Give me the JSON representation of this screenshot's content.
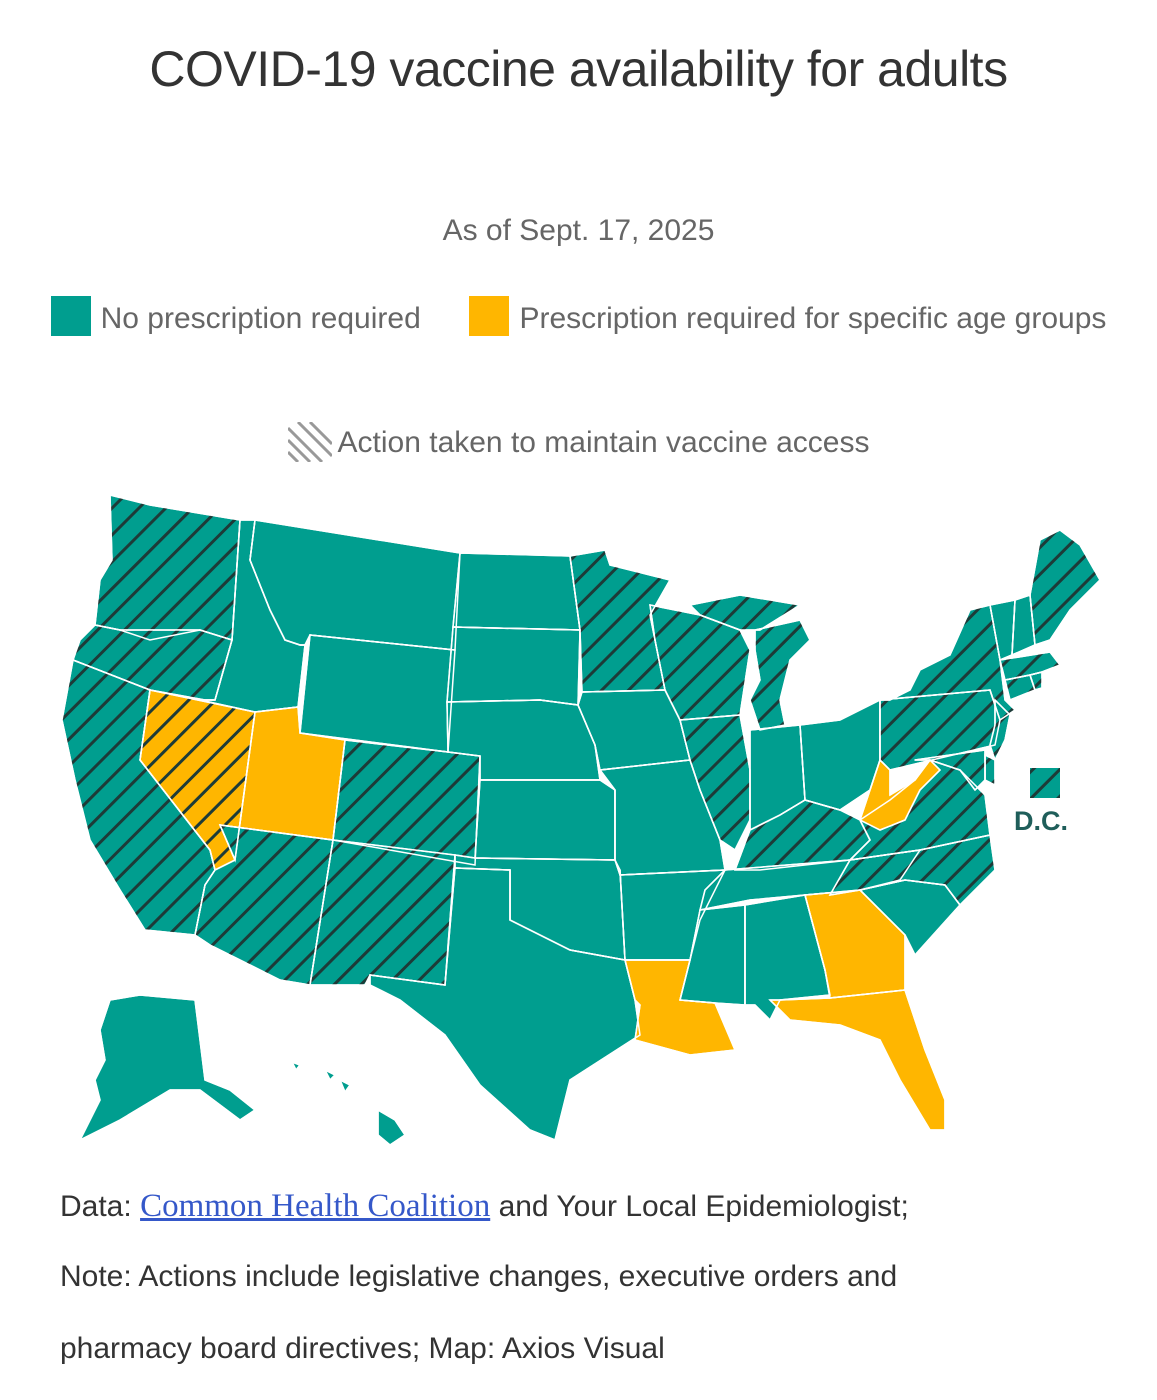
{
  "title": "COVID-19 vaccine availability for adults",
  "subtitle": "As of Sept. 17, 2025",
  "legend": {
    "no_rx": {
      "label": "No prescription required",
      "color": "#009e8f"
    },
    "rx": {
      "label": "Prescription required for specific age groups",
      "color": "#ffb600"
    },
    "action": {
      "label": "Action taken to maintain vaccine access",
      "icon": "hatch-pattern-icon"
    }
  },
  "dc_label": "D.C.",
  "footer": {
    "data_prefix": "Data:",
    "data_link": "Common Health Coalition",
    "data_suffix": "and Your Local Epidemiologist;",
    "note_line1": "Note: Actions include legislative changes, executive orders and",
    "note_line2": "pharmacy board directives; Map: Axios Visual"
  },
  "colors": {
    "teal": "#009e8f",
    "yellow": "#ffb600",
    "hatch": "#1d3b38"
  },
  "chart_data": {
    "type": "choropleth",
    "title": "COVID-19 vaccine availability for adults",
    "subtitle": "As of Sept. 17, 2025",
    "categories": [
      "No prescription required",
      "Prescription required for specific age groups"
    ],
    "overlay": "Action taken to maintain vaccine access",
    "states": [
      {
        "code": "WA",
        "status": "no_rx",
        "action": true
      },
      {
        "code": "OR",
        "status": "no_rx",
        "action": true
      },
      {
        "code": "CA",
        "status": "no_rx",
        "action": true
      },
      {
        "code": "NV",
        "status": "rx",
        "action": true
      },
      {
        "code": "ID",
        "status": "no_rx",
        "action": false
      },
      {
        "code": "MT",
        "status": "no_rx",
        "action": false
      },
      {
        "code": "WY",
        "status": "no_rx",
        "action": false
      },
      {
        "code": "UT",
        "status": "rx",
        "action": false
      },
      {
        "code": "CO",
        "status": "no_rx",
        "action": true
      },
      {
        "code": "AZ",
        "status": "no_rx",
        "action": true
      },
      {
        "code": "NM",
        "status": "no_rx",
        "action": true
      },
      {
        "code": "ND",
        "status": "no_rx",
        "action": false
      },
      {
        "code": "SD",
        "status": "no_rx",
        "action": false
      },
      {
        "code": "NE",
        "status": "no_rx",
        "action": false
      },
      {
        "code": "KS",
        "status": "no_rx",
        "action": false
      },
      {
        "code": "OK",
        "status": "no_rx",
        "action": false
      },
      {
        "code": "TX",
        "status": "no_rx",
        "action": false
      },
      {
        "code": "MN",
        "status": "no_rx",
        "action": true
      },
      {
        "code": "IA",
        "status": "no_rx",
        "action": false
      },
      {
        "code": "MO",
        "status": "no_rx",
        "action": false
      },
      {
        "code": "AR",
        "status": "no_rx",
        "action": false
      },
      {
        "code": "LA",
        "status": "rx",
        "action": false
      },
      {
        "code": "WI",
        "status": "no_rx",
        "action": true
      },
      {
        "code": "IL",
        "status": "no_rx",
        "action": true
      },
      {
        "code": "MI",
        "status": "no_rx",
        "action": true
      },
      {
        "code": "IN",
        "status": "no_rx",
        "action": false
      },
      {
        "code": "OH",
        "status": "no_rx",
        "action": false
      },
      {
        "code": "KY",
        "status": "no_rx",
        "action": true
      },
      {
        "code": "TN",
        "status": "no_rx",
        "action": false
      },
      {
        "code": "MS",
        "status": "no_rx",
        "action": false
      },
      {
        "code": "AL",
        "status": "no_rx",
        "action": false
      },
      {
        "code": "GA",
        "status": "rx",
        "action": false
      },
      {
        "code": "FL",
        "status": "rx",
        "action": false
      },
      {
        "code": "SC",
        "status": "no_rx",
        "action": false
      },
      {
        "code": "NC",
        "status": "no_rx",
        "action": true
      },
      {
        "code": "VA",
        "status": "no_rx",
        "action": true
      },
      {
        "code": "WV",
        "status": "rx",
        "action": false
      },
      {
        "code": "PA",
        "status": "no_rx",
        "action": true
      },
      {
        "code": "NY",
        "status": "no_rx",
        "action": true
      },
      {
        "code": "NJ",
        "status": "no_rx",
        "action": true
      },
      {
        "code": "DE",
        "status": "no_rx",
        "action": true
      },
      {
        "code": "MD",
        "status": "no_rx",
        "action": true
      },
      {
        "code": "CT",
        "status": "no_rx",
        "action": true
      },
      {
        "code": "RI",
        "status": "no_rx",
        "action": true
      },
      {
        "code": "MA",
        "status": "no_rx",
        "action": true
      },
      {
        "code": "VT",
        "status": "no_rx",
        "action": false
      },
      {
        "code": "NH",
        "status": "no_rx",
        "action": false
      },
      {
        "code": "ME",
        "status": "no_rx",
        "action": true
      },
      {
        "code": "AK",
        "status": "no_rx",
        "action": false
      },
      {
        "code": "HI",
        "status": "no_rx",
        "action": false
      },
      {
        "code": "DC",
        "status": "no_rx",
        "action": true
      }
    ]
  }
}
